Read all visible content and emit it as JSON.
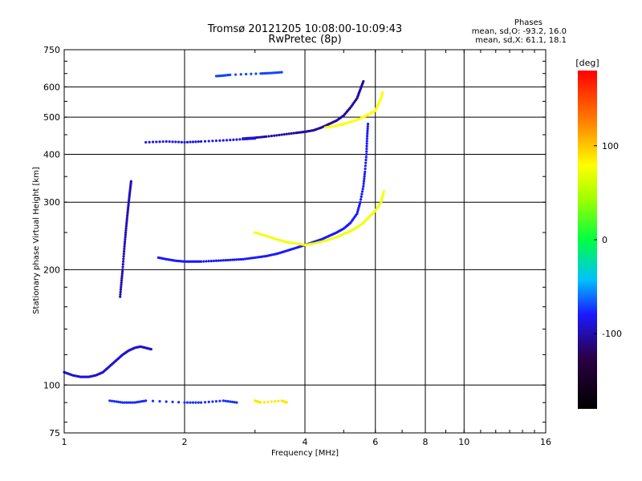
{
  "chart_data": {
    "type": "scatter",
    "title": "Tromsø 20121205 10:08:00-10:09:43",
    "subtitle": "RwPretec (8p)",
    "stats": {
      "heading": "Phases",
      "line1": "mean, sd,O: -93.2, 16.0",
      "line2": "mean, sd,X:  61.1, 18.1"
    },
    "xlabel": "Frequency [MHz]",
    "ylabel": "Stationary phase Virtual Height [km]",
    "x_scale": "log",
    "y_scale": "log",
    "xlim": [
      1,
      16
    ],
    "ylim": [
      75,
      750
    ],
    "x_ticks": [
      1,
      2,
      4,
      6,
      8,
      10,
      16
    ],
    "x_tick_labels": [
      "1",
      "2",
      "4",
      "6",
      "8",
      "10",
      "16"
    ],
    "y_ticks": [
      75,
      100,
      200,
      300,
      400,
      500,
      600,
      750
    ],
    "y_tick_labels": [
      "75",
      "100",
      "200",
      "300",
      "400",
      "500",
      "600",
      "750"
    ],
    "grid_major_x": [
      2,
      4,
      6,
      8,
      10
    ],
    "grid_major_y": [
      100,
      200,
      300,
      400,
      500,
      600
    ],
    "grid": true,
    "colorbar": {
      "label": "[deg]",
      "min": -180,
      "max": 180,
      "tick_values": [
        100,
        0,
        -100
      ],
      "tick_labels": [
        "100",
        "0",
        "-100"
      ]
    },
    "series": [
      {
        "trace": "o-mode-f-region",
        "phase": -100,
        "points": [
          [
            1.72,
            215
          ],
          [
            1.8,
            213
          ],
          [
            1.9,
            211
          ],
          [
            2.0,
            210
          ],
          [
            2.1,
            210
          ],
          [
            2.2,
            210
          ],
          [
            2.4,
            211
          ],
          [
            2.6,
            212
          ],
          [
            2.8,
            213
          ],
          [
            3.0,
            215
          ],
          [
            3.2,
            217
          ],
          [
            3.4,
            220
          ],
          [
            3.6,
            224
          ],
          [
            3.8,
            228
          ],
          [
            4.0,
            232
          ],
          [
            4.2,
            236
          ],
          [
            4.4,
            240
          ],
          [
            4.6,
            245
          ],
          [
            4.8,
            250
          ],
          [
            5.0,
            256
          ],
          [
            5.2,
            265
          ],
          [
            5.4,
            280
          ],
          [
            5.5,
            300
          ],
          [
            5.6,
            330
          ],
          [
            5.65,
            360
          ],
          [
            5.7,
            400
          ],
          [
            5.72,
            440
          ],
          [
            5.75,
            480
          ]
        ]
      },
      {
        "trace": "o-mode-f-region-upper",
        "phase": -120,
        "points": [
          [
            2.8,
            440
          ],
          [
            3.0,
            442
          ],
          [
            3.2,
            445
          ],
          [
            3.5,
            450
          ],
          [
            3.8,
            455
          ],
          [
            4.0,
            458
          ],
          [
            4.2,
            462
          ],
          [
            4.4,
            470
          ],
          [
            4.6,
            480
          ],
          [
            4.8,
            490
          ],
          [
            5.0,
            505
          ],
          [
            5.2,
            530
          ],
          [
            5.4,
            560
          ],
          [
            5.5,
            590
          ],
          [
            5.6,
            620
          ]
        ]
      },
      {
        "trace": "x-mode",
        "phase": 75,
        "points": [
          [
            3.0,
            250
          ],
          [
            3.2,
            245
          ],
          [
            3.4,
            240
          ],
          [
            3.6,
            236
          ],
          [
            3.8,
            234
          ],
          [
            4.0,
            232
          ],
          [
            4.2,
            234
          ],
          [
            4.5,
            238
          ],
          [
            4.8,
            243
          ],
          [
            5.0,
            248
          ],
          [
            5.2,
            252
          ],
          [
            5.4,
            258
          ],
          [
            5.6,
            265
          ],
          [
            5.8,
            275
          ],
          [
            6.0,
            285
          ],
          [
            6.2,
            300
          ],
          [
            6.3,
            320
          ]
        ]
      },
      {
        "trace": "x-mode-upper",
        "phase": 80,
        "points": [
          [
            4.5,
            470
          ],
          [
            4.8,
            475
          ],
          [
            5.0,
            480
          ],
          [
            5.2,
            486
          ],
          [
            5.4,
            492
          ],
          [
            5.6,
            500
          ],
          [
            5.8,
            510
          ],
          [
            6.0,
            520
          ],
          [
            6.1,
            540
          ],
          [
            6.2,
            560
          ],
          [
            6.25,
            580
          ]
        ]
      },
      {
        "trace": "e-region-spread",
        "phase": -110,
        "points": [
          [
            1.0,
            108
          ],
          [
            1.05,
            106
          ],
          [
            1.1,
            105
          ],
          [
            1.15,
            105
          ],
          [
            1.2,
            106
          ],
          [
            1.25,
            108
          ],
          [
            1.3,
            112
          ],
          [
            1.35,
            116
          ],
          [
            1.4,
            120
          ],
          [
            1.45,
            123
          ],
          [
            1.5,
            125
          ],
          [
            1.55,
            126
          ],
          [
            1.6,
            125
          ],
          [
            1.65,
            124
          ]
        ]
      },
      {
        "trace": "spread-f-vertical",
        "phase": -115,
        "points": [
          [
            1.38,
            170
          ],
          [
            1.39,
            185
          ],
          [
            1.4,
            200
          ],
          [
            1.41,
            220
          ],
          [
            1.42,
            240
          ],
          [
            1.43,
            260
          ],
          [
            1.44,
            280
          ],
          [
            1.45,
            300
          ],
          [
            1.46,
            320
          ],
          [
            1.47,
            340
          ]
        ]
      },
      {
        "trace": "multihop-band",
        "phase": -105,
        "points": [
          [
            1.6,
            430
          ],
          [
            1.8,
            432
          ],
          [
            2.0,
            430
          ],
          [
            2.2,
            432
          ],
          [
            2.5,
            435
          ],
          [
            2.8,
            438
          ],
          [
            3.0,
            440
          ]
        ]
      },
      {
        "trace": "low-echoes",
        "phase": -95,
        "points": [
          [
            1.3,
            91
          ],
          [
            1.4,
            90
          ],
          [
            1.5,
            90
          ],
          [
            1.6,
            91
          ],
          [
            2.0,
            90
          ],
          [
            2.2,
            90
          ],
          [
            2.5,
            91
          ],
          [
            2.7,
            90
          ]
        ]
      },
      {
        "trace": "low-echoes-x",
        "phase": 90,
        "points": [
          [
            3.0,
            91
          ],
          [
            3.1,
            90
          ],
          [
            3.5,
            91
          ],
          [
            3.6,
            90
          ]
        ]
      },
      {
        "trace": "top-band",
        "phase": -90,
        "points": [
          [
            2.4,
            640
          ],
          [
            2.5,
            642
          ],
          [
            2.6,
            645
          ],
          [
            3.1,
            650
          ],
          [
            3.3,
            652
          ],
          [
            3.5,
            655
          ]
        ]
      }
    ]
  }
}
